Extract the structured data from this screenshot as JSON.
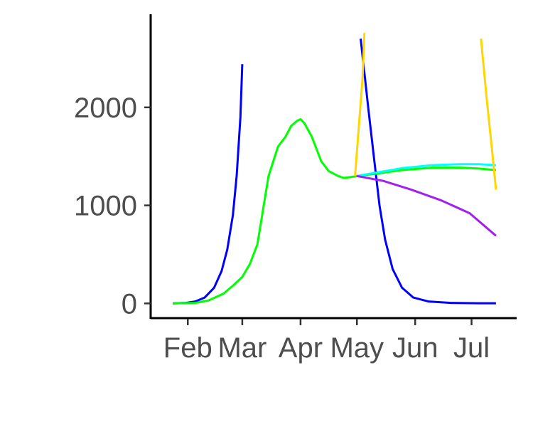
{
  "chart_data": {
    "type": "line",
    "title": "",
    "xlabel": "",
    "ylabel": "",
    "x_axis": {
      "scale": "date",
      "range": [
        "2020-01-13",
        "2020-07-25"
      ],
      "ticks": [
        {
          "date": "2020-02-01",
          "label": "Feb"
        },
        {
          "date": "2020-03-01",
          "label": "Mar"
        },
        {
          "date": "2020-04-01",
          "label": "Apr"
        },
        {
          "date": "2020-05-01",
          "label": "May"
        },
        {
          "date": "2020-06-01",
          "label": "Jun"
        },
        {
          "date": "2020-07-01",
          "label": "Jul"
        }
      ]
    },
    "y_axis": {
      "range": [
        -150,
        2950
      ],
      "ticks": [
        {
          "value": 0,
          "label": "0"
        },
        {
          "value": 1000,
          "label": "1000"
        },
        {
          "value": 2000,
          "label": "2000"
        }
      ]
    },
    "grid": false,
    "legend": "none",
    "series": [
      {
        "color": "#0000ff",
        "points": [
          [
            "2020-01-24",
            0
          ],
          [
            "2020-01-31",
            5
          ],
          [
            "2020-02-05",
            20
          ],
          [
            "2020-02-10",
            60
          ],
          [
            "2020-02-15",
            160
          ],
          [
            "2020-02-19",
            330
          ],
          [
            "2020-02-22",
            550
          ],
          [
            "2020-02-25",
            900
          ],
          [
            "2020-02-27",
            1300
          ],
          [
            "2020-02-29",
            1900
          ],
          [
            "2020-03-01",
            2440
          ]
        ]
      },
      {
        "color": "#0000ff",
        "points": [
          [
            "2020-05-03",
            2700
          ],
          [
            "2020-05-07",
            2000
          ],
          [
            "2020-05-10",
            1500
          ],
          [
            "2020-05-13",
            1000
          ],
          [
            "2020-05-16",
            650
          ],
          [
            "2020-05-20",
            350
          ],
          [
            "2020-05-25",
            160
          ],
          [
            "2020-05-31",
            60
          ],
          [
            "2020-06-08",
            20
          ],
          [
            "2020-06-20",
            5
          ],
          [
            "2020-07-05",
            2
          ],
          [
            "2020-07-14",
            2
          ]
        ]
      },
      {
        "color": "#00ff00",
        "points": [
          [
            "2020-01-24",
            0
          ],
          [
            "2020-02-05",
            5
          ],
          [
            "2020-02-12",
            30
          ],
          [
            "2020-02-20",
            100
          ],
          [
            "2020-02-25",
            180
          ],
          [
            "2020-03-01",
            270
          ],
          [
            "2020-03-05",
            400
          ],
          [
            "2020-03-09",
            600
          ],
          [
            "2020-03-12",
            950
          ],
          [
            "2020-03-15",
            1300
          ],
          [
            "2020-03-20",
            1600
          ],
          [
            "2020-03-24",
            1700
          ],
          [
            "2020-03-27",
            1810
          ],
          [
            "2020-03-30",
            1860
          ],
          [
            "2020-04-01",
            1880
          ],
          [
            "2020-04-03",
            1840
          ],
          [
            "2020-04-07",
            1700
          ],
          [
            "2020-04-12",
            1450
          ],
          [
            "2020-04-16",
            1350
          ],
          [
            "2020-04-21",
            1300
          ],
          [
            "2020-04-24",
            1280
          ],
          [
            "2020-04-28",
            1290
          ],
          [
            "2020-05-01",
            1300
          ],
          [
            "2020-05-10",
            1320
          ],
          [
            "2020-05-25",
            1360
          ],
          [
            "2020-06-10",
            1385
          ],
          [
            "2020-06-25",
            1385
          ],
          [
            "2020-07-05",
            1375
          ],
          [
            "2020-07-14",
            1360
          ]
        ]
      },
      {
        "color": "#00ffff",
        "points": [
          [
            "2020-05-01",
            1300
          ],
          [
            "2020-05-10",
            1330
          ],
          [
            "2020-05-25",
            1380
          ],
          [
            "2020-06-10",
            1410
          ],
          [
            "2020-06-25",
            1420
          ],
          [
            "2020-07-05",
            1420
          ],
          [
            "2020-07-14",
            1410
          ]
        ]
      },
      {
        "color": "#a020f0",
        "points": [
          [
            "2020-05-01",
            1300
          ],
          [
            "2020-05-15",
            1250
          ],
          [
            "2020-05-30",
            1160
          ],
          [
            "2020-06-15",
            1050
          ],
          [
            "2020-06-30",
            920
          ],
          [
            "2020-07-14",
            690
          ]
        ]
      },
      {
        "color": "#ffd700",
        "points": [
          [
            "2020-04-30",
            1300
          ],
          [
            "2020-05-02",
            1800
          ],
          [
            "2020-05-04",
            2300
          ],
          [
            "2020-05-05",
            2760
          ]
        ]
      },
      {
        "color": "#ffd700",
        "points": [
          [
            "2020-07-06",
            2700
          ],
          [
            "2020-07-09",
            2100
          ],
          [
            "2020-07-12",
            1550
          ],
          [
            "2020-07-14",
            1160
          ]
        ]
      }
    ]
  }
}
